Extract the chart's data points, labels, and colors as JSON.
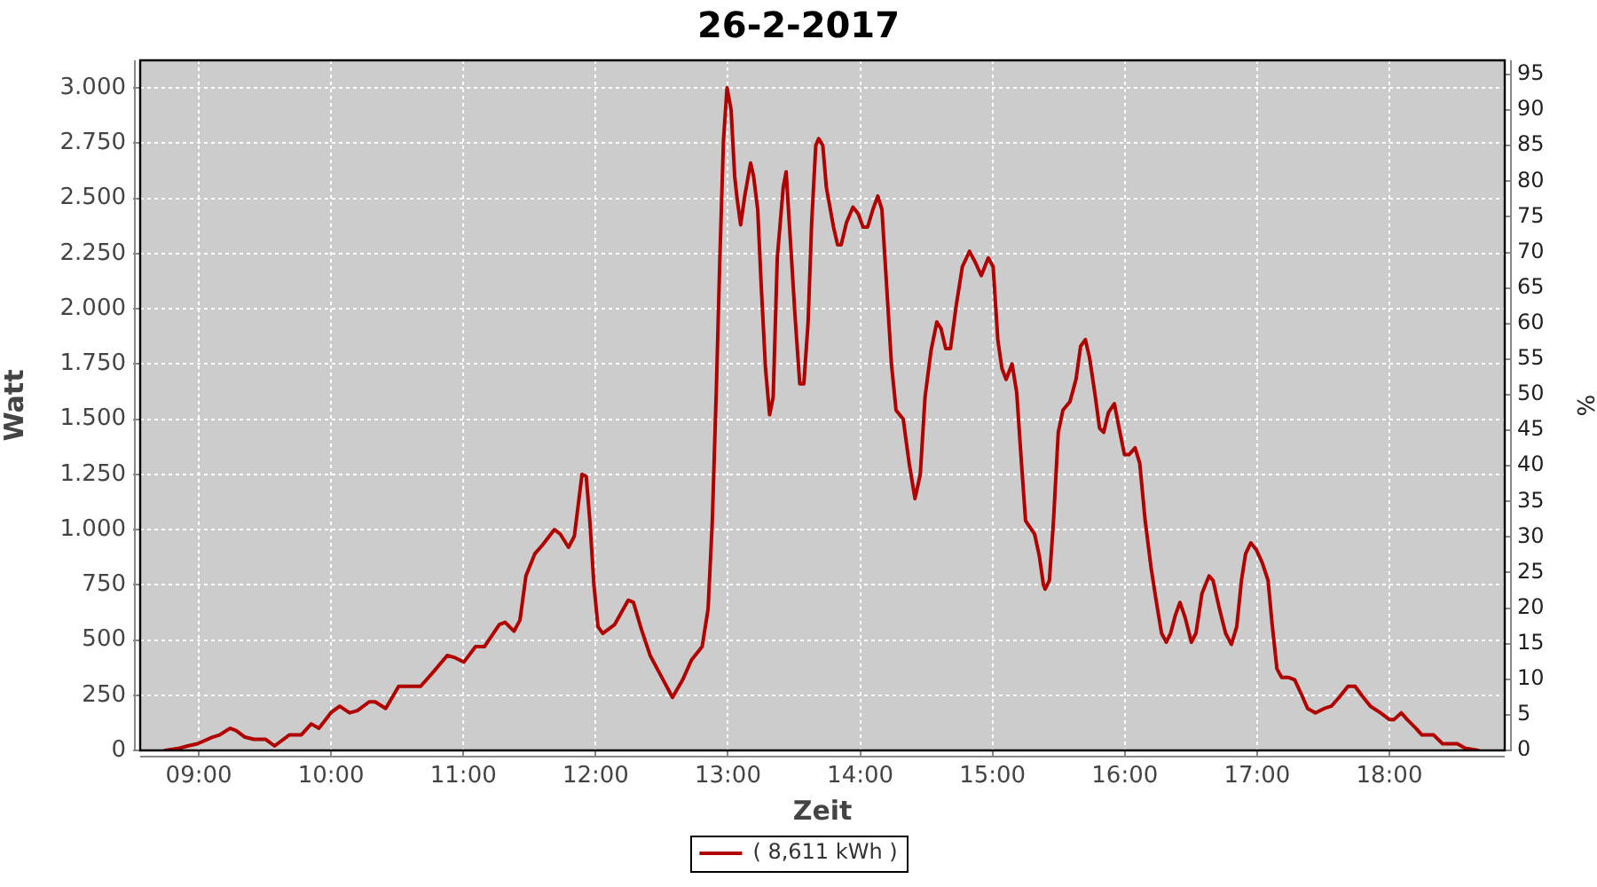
{
  "chart_data": {
    "type": "line",
    "title": "26-2-2017",
    "xlabel": "Zeit",
    "ylabel": "Watt",
    "y2label": "%",
    "x": [
      8.746,
      8.857,
      8.915,
      8.99,
      9.103,
      9.157,
      9.237,
      9.282,
      9.349,
      9.416,
      9.506,
      9.573,
      9.684,
      9.774,
      9.85,
      9.908,
      9.998,
      10.065,
      10.14,
      10.199,
      10.288,
      10.333,
      10.413,
      10.511,
      10.578,
      10.677,
      10.78,
      10.878,
      10.937,
      11.004,
      11.092,
      11.16,
      11.272,
      11.316,
      11.383,
      11.428,
      11.473,
      11.54,
      11.598,
      11.688,
      11.732,
      11.795,
      11.839,
      11.897,
      11.929,
      11.956,
      11.987,
      12.018,
      12.054,
      12.144,
      12.246,
      12.286,
      12.345,
      12.412,
      12.501,
      12.581,
      12.658,
      12.725,
      12.805,
      12.85,
      12.882,
      12.913,
      12.939,
      12.966,
      12.993,
      13.006,
      13.024,
      13.051,
      13.069,
      13.096,
      13.127,
      13.171,
      13.194,
      13.225,
      13.252,
      13.284,
      13.315,
      13.342,
      13.373,
      13.418,
      13.44,
      13.472,
      13.507,
      13.543,
      13.574,
      13.606,
      13.633,
      13.664,
      13.686,
      13.717,
      13.744,
      13.798,
      13.829,
      13.856,
      13.896,
      13.945,
      13.985,
      14.021,
      14.056,
      14.096,
      14.133,
      14.164,
      14.2,
      14.236,
      14.271,
      14.325,
      14.37,
      14.414,
      14.454,
      14.49,
      14.535,
      14.579,
      14.611,
      14.646,
      14.682,
      14.727,
      14.772,
      14.826,
      14.87,
      14.915,
      14.968,
      15.005,
      15.04,
      15.071,
      15.103,
      15.148,
      15.183,
      15.219,
      15.25,
      15.318,
      15.354,
      15.385,
      15.398,
      15.43,
      15.461,
      15.497,
      15.532,
      15.586,
      15.631,
      15.666,
      15.702,
      15.733,
      15.773,
      15.809,
      15.84,
      15.876,
      15.921,
      15.957,
      15.997,
      16.033,
      16.078,
      16.113,
      16.154,
      16.198,
      16.234,
      16.278,
      16.314,
      16.346,
      16.381,
      16.417,
      16.457,
      16.503,
      16.538,
      16.583,
      16.637,
      16.667,
      16.712,
      16.762,
      16.806,
      16.846,
      16.882,
      16.913,
      16.953,
      16.993,
      17.039,
      17.083,
      17.114,
      17.15,
      17.186,
      17.24,
      17.284,
      17.338,
      17.382,
      17.441,
      17.508,
      17.561,
      17.62,
      17.687,
      17.741,
      17.79,
      17.857,
      17.933,
      18.0,
      18.036,
      18.09,
      18.134,
      18.201,
      18.246,
      18.335,
      18.402,
      18.514,
      18.572,
      18.67
    ],
    "series": [
      {
        "name": "( 8,611 kWh )",
        "color": "#b00000",
        "values": [
          0,
          10,
          20,
          30,
          60,
          70,
          100,
          90,
          60,
          50,
          50,
          20,
          70,
          70,
          120,
          100,
          170,
          200,
          170,
          180,
          220,
          220,
          190,
          290,
          290,
          290,
          360,
          430,
          420,
          400,
          470,
          470,
          570,
          580,
          540,
          590,
          790,
          890,
          930,
          1000,
          980,
          920,
          970,
          1250,
          1240,
          1040,
          750,
          560,
          530,
          570,
          680,
          670,
          550,
          430,
          330,
          240,
          320,
          410,
          470,
          640,
          1040,
          1650,
          2230,
          2760,
          3000,
          2960,
          2900,
          2600,
          2500,
          2380,
          2510,
          2660,
          2600,
          2450,
          2100,
          1730,
          1520,
          1600,
          2230,
          2550,
          2620,
          2310,
          1970,
          1660,
          1660,
          1940,
          2390,
          2740,
          2770,
          2740,
          2550,
          2370,
          2290,
          2290,
          2390,
          2460,
          2430,
          2370,
          2370,
          2450,
          2510,
          2450,
          2100,
          1750,
          1540,
          1500,
          1300,
          1140,
          1250,
          1600,
          1810,
          1940,
          1910,
          1820,
          1820,
          2020,
          2190,
          2260,
          2210,
          2150,
          2230,
          2190,
          1860,
          1730,
          1680,
          1750,
          1620,
          1300,
          1040,
          980,
          880,
          750,
          730,
          770,
          1040,
          1440,
          1540,
          1580,
          1680,
          1830,
          1860,
          1780,
          1620,
          1460,
          1440,
          1530,
          1570,
          1460,
          1340,
          1340,
          1370,
          1300,
          1040,
          830,
          690,
          530,
          490,
          530,
          610,
          670,
          600,
          490,
          530,
          710,
          790,
          770,
          650,
          530,
          480,
          560,
          770,
          890,
          940,
          910,
          850,
          770,
          570,
          370,
          330,
          330,
          320,
          250,
          190,
          170,
          190,
          200,
          240,
          290,
          290,
          250,
          200,
          170,
          140,
          140,
          170,
          140,
          100,
          70,
          70,
          30,
          30,
          10,
          0
        ]
      }
    ],
    "xlim": [
      8.557,
      18.872
    ],
    "xticks": [
      {
        "value": 9,
        "label": "09:00"
      },
      {
        "value": 10,
        "label": "10:00"
      },
      {
        "value": 11,
        "label": "11:00"
      },
      {
        "value": 12,
        "label": "12:00"
      },
      {
        "value": 13,
        "label": "13:00"
      },
      {
        "value": 14,
        "label": "14:00"
      },
      {
        "value": 15,
        "label": "15:00"
      },
      {
        "value": 16,
        "label": "16:00"
      },
      {
        "value": 17,
        "label": "17:00"
      },
      {
        "value": 18,
        "label": "18:00"
      }
    ],
    "ylim": [
      0,
      3125
    ],
    "yticks": [
      0,
      250,
      500,
      750,
      {
        "value": 1000,
        "label": "1.000"
      },
      {
        "value": 1250,
        "label": "1.250"
      },
      {
        "value": 1500,
        "label": "1.500"
      },
      {
        "value": 1750,
        "label": "1.750"
      },
      {
        "value": 2000,
        "label": "2.000"
      },
      {
        "value": 2250,
        "label": "2.250"
      },
      {
        "value": 2500,
        "label": "2.500"
      },
      {
        "value": 2750,
        "label": "2.750"
      },
      {
        "value": 3000,
        "label": "3.000"
      }
    ],
    "y2lim": [
      0,
      97
    ],
    "y2ticks": [
      0,
      5,
      10,
      15,
      20,
      25,
      30,
      35,
      40,
      45,
      50,
      55,
      60,
      65,
      70,
      75,
      80,
      85,
      90,
      95
    ],
    "grid": true,
    "legend": "bottom"
  }
}
